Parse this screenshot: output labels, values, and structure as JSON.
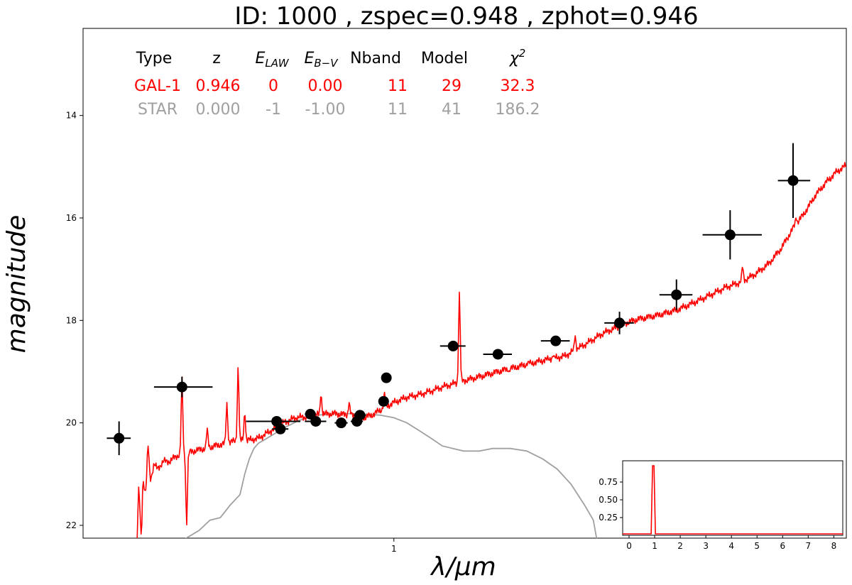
{
  "chart_data": {
    "type": "scatter",
    "title": "ID:  1000   , zspec=0.948 , zphot=0.946",
    "xlabel": "λ/μm",
    "ylabel": "magnitude",
    "x_scale": "log",
    "x_range": [
      0.31,
      5.5
    ],
    "y_range": [
      22.25,
      12.3
    ],
    "y_inverted": true,
    "x_ticks": [
      {
        "value": 1,
        "label": "1"
      }
    ],
    "y_ticks": [
      {
        "value": 14,
        "label": "14"
      },
      {
        "value": 16,
        "label": "16"
      },
      {
        "value": 18,
        "label": "18"
      },
      {
        "value": 20,
        "label": "20"
      },
      {
        "value": 22,
        "label": "22"
      }
    ],
    "fit_table": {
      "headers": [
        "Type",
        "z",
        "E_LAW",
        "E_B-V",
        "Nband",
        "Model",
        "χ2"
      ],
      "rows": [
        {
          "cells": [
            "GAL-1",
            "0.946",
            "0",
            "0.00",
            "11",
            "29",
            "32.3"
          ],
          "color": "#ff0000"
        },
        {
          "cells": [
            "STAR",
            "0.000",
            "-1",
            "-1.00",
            "11",
            "41",
            "186.2"
          ],
          "color": "#a0a0a0"
        }
      ]
    },
    "observed_points": [
      {
        "x": 0.355,
        "y": 20.3,
        "xerr_lo": 0.016,
        "xerr_hi": 0.016,
        "yerr": 0.33
      },
      {
        "x": 0.45,
        "y": 19.3,
        "xerr_lo": 0.045,
        "xerr_hi": 0.055,
        "yerr": 0.2
      },
      {
        "x": 0.643,
        "y": 19.97,
        "xerr_lo": 0.07,
        "xerr_hi": 0.06,
        "yerr": 0.1
      },
      {
        "x": 0.652,
        "y": 20.12,
        "xerr_lo": 0.02,
        "xerr_hi": 0.02,
        "yerr": 0.08
      },
      {
        "x": 0.73,
        "y": 19.83,
        "xerr_lo": 0.015,
        "xerr_hi": 0.015,
        "yerr": 0.05
      },
      {
        "x": 0.745,
        "y": 19.97,
        "xerr_lo": 0.03,
        "xerr_hi": 0.03,
        "yerr": 0.05
      },
      {
        "x": 0.82,
        "y": 20.0,
        "xerr_lo": 0.02,
        "xerr_hi": 0.02,
        "yerr": 0.05
      },
      {
        "x": 0.87,
        "y": 19.97,
        "xerr_lo": 0.02,
        "xerr_hi": 0.02,
        "yerr": 0.05
      },
      {
        "x": 0.88,
        "y": 19.85,
        "xerr_lo": 0.02,
        "xerr_hi": 0.02,
        "yerr": 0.05
      },
      {
        "x": 0.962,
        "y": 19.58,
        "xerr_lo": 0.015,
        "xerr_hi": 0.015,
        "yerr": 0.05
      },
      {
        "x": 0.972,
        "y": 19.12,
        "xerr_lo": 0.01,
        "xerr_hi": 0.01,
        "yerr": 0.05
      },
      {
        "x": 1.25,
        "y": 18.5,
        "xerr_lo": 0.06,
        "xerr_hi": 0.06,
        "yerr": 0.05
      },
      {
        "x": 1.48,
        "y": 18.66,
        "xerr_lo": 0.08,
        "xerr_hi": 0.08,
        "yerr": 0.05
      },
      {
        "x": 1.84,
        "y": 18.4,
        "xerr_lo": 0.1,
        "xerr_hi": 0.1,
        "yerr": 0.05
      },
      {
        "x": 2.34,
        "y": 18.05,
        "xerr_lo": 0.13,
        "xerr_hi": 0.13,
        "yerr": 0.22
      },
      {
        "x": 2.9,
        "y": 17.5,
        "xerr_lo": 0.18,
        "xerr_hi": 0.18,
        "yerr": 0.3
      },
      {
        "x": 3.55,
        "y": 16.33,
        "xerr_lo": 0.35,
        "xerr_hi": 0.45,
        "yerr": 0.48
      },
      {
        "x": 4.5,
        "y": 15.27,
        "xerr_lo": 0.25,
        "xerr_hi": 0.3,
        "yerr": 0.73
      }
    ],
    "galaxy_model": {
      "name": "GAL-1",
      "color": "#ff0000",
      "continuum": [
        [
          0.38,
          22.3
        ],
        [
          0.382,
          21.3
        ],
        [
          0.385,
          21.6
        ],
        [
          0.388,
          21.0
        ],
        [
          0.392,
          21.4
        ],
        [
          0.396,
          20.9
        ],
        [
          0.4,
          21.1
        ],
        [
          0.405,
          20.8
        ],
        [
          0.41,
          20.9
        ],
        [
          0.42,
          20.75
        ],
        [
          0.43,
          20.75
        ],
        [
          0.44,
          20.65
        ],
        [
          0.455,
          20.6
        ],
        [
          0.47,
          20.55
        ],
        [
          0.49,
          20.5
        ],
        [
          0.51,
          20.45
        ],
        [
          0.53,
          20.4
        ],
        [
          0.55,
          20.35
        ],
        [
          0.57,
          20.35
        ],
        [
          0.6,
          20.3
        ],
        [
          0.62,
          20.2
        ],
        [
          0.64,
          20.1
        ],
        [
          0.66,
          20.0
        ],
        [
          0.69,
          19.9
        ],
        [
          0.72,
          19.88
        ],
        [
          0.76,
          19.83
        ],
        [
          0.8,
          19.82
        ],
        [
          0.85,
          19.85
        ],
        [
          0.89,
          19.9
        ],
        [
          0.92,
          19.85
        ],
        [
          0.95,
          19.75
        ],
        [
          1.0,
          19.6
        ],
        [
          1.05,
          19.5
        ],
        [
          1.1,
          19.45
        ],
        [
          1.15,
          19.38
        ],
        [
          1.2,
          19.3
        ],
        [
          1.3,
          19.18
        ],
        [
          1.4,
          19.08
        ],
        [
          1.5,
          18.98
        ],
        [
          1.6,
          18.9
        ],
        [
          1.7,
          18.82
        ],
        [
          1.8,
          18.75
        ],
        [
          1.9,
          18.7
        ],
        [
          2.0,
          18.55
        ],
        [
          2.1,
          18.4
        ],
        [
          2.2,
          18.25
        ],
        [
          2.3,
          18.15
        ],
        [
          2.4,
          18.05
        ],
        [
          2.5,
          17.98
        ],
        [
          2.7,
          17.9
        ],
        [
          2.9,
          17.8
        ],
        [
          3.1,
          17.65
        ],
        [
          3.3,
          17.5
        ],
        [
          3.5,
          17.35
        ],
        [
          3.7,
          17.25
        ],
        [
          3.9,
          17.1
        ],
        [
          4.1,
          16.9
        ],
        [
          4.3,
          16.6
        ],
        [
          4.5,
          16.2
        ],
        [
          4.7,
          15.9
        ],
        [
          4.9,
          15.55
        ],
        [
          5.1,
          15.3
        ],
        [
          5.3,
          15.1
        ],
        [
          5.5,
          14.97
        ]
      ],
      "emission_lines": [
        {
          "x": 0.386,
          "peak": 22.2
        },
        {
          "x": 0.396,
          "peak": 20.45
        },
        {
          "x": 0.45,
          "peak": 19.1
        },
        {
          "x": 0.458,
          "peak": 22.0
        },
        {
          "x": 0.495,
          "peak": 20.1
        },
        {
          "x": 0.533,
          "peak": 19.6
        },
        {
          "x": 0.556,
          "peak": 18.9
        },
        {
          "x": 0.57,
          "peak": 19.8
        },
        {
          "x": 0.76,
          "peak": 19.45
        },
        {
          "x": 0.845,
          "peak": 19.6
        },
        {
          "x": 0.965,
          "peak": 19.4
        },
        {
          "x": 1.28,
          "peak": 17.45
        },
        {
          "x": 1.54,
          "peak": 19.0
        },
        {
          "x": 1.66,
          "peak": 18.8
        },
        {
          "x": 1.82,
          "peak": 18.7
        },
        {
          "x": 1.98,
          "peak": 18.3
        },
        {
          "x": 3.72,
          "peak": 16.95
        },
        {
          "x": 4.55,
          "peak": 16.0
        }
      ]
    },
    "star_model": {
      "name": "STAR",
      "color": "#a0a0a0",
      "points": [
        [
          0.45,
          22.3
        ],
        [
          0.48,
          22.1
        ],
        [
          0.5,
          21.9
        ],
        [
          0.52,
          21.85
        ],
        [
          0.54,
          21.6
        ],
        [
          0.56,
          21.4
        ],
        [
          0.57,
          21.0
        ],
        [
          0.58,
          20.7
        ],
        [
          0.59,
          20.5
        ],
        [
          0.6,
          20.4
        ],
        [
          0.62,
          20.3
        ],
        [
          0.64,
          20.2
        ],
        [
          0.66,
          20.1
        ],
        [
          0.7,
          19.95
        ],
        [
          0.75,
          19.85
        ],
        [
          0.8,
          19.82
        ],
        [
          0.85,
          19.82
        ],
        [
          0.9,
          19.83
        ],
        [
          0.95,
          19.85
        ],
        [
          1.0,
          19.9
        ],
        [
          1.05,
          20.0
        ],
        [
          1.1,
          20.15
        ],
        [
          1.15,
          20.3
        ],
        [
          1.2,
          20.45
        ],
        [
          1.3,
          20.55
        ],
        [
          1.38,
          20.55
        ],
        [
          1.45,
          20.5
        ],
        [
          1.55,
          20.5
        ],
        [
          1.65,
          20.55
        ],
        [
          1.75,
          20.7
        ],
        [
          1.85,
          20.9
        ],
        [
          1.95,
          21.2
        ],
        [
          2.05,
          21.6
        ],
        [
          2.12,
          21.9
        ],
        [
          2.15,
          22.3
        ]
      ]
    },
    "inset": {
      "type": "line",
      "color": "#ff0000",
      "x_range": [
        -0.25,
        8.35
      ],
      "y_range": [
        0.0,
        1.05
      ],
      "x_ticks": [
        "0",
        "1",
        "2",
        "3",
        "4",
        "5",
        "6",
        "7",
        "8"
      ],
      "y_ticks": [
        "0.25",
        "0.50",
        "0.75"
      ],
      "peak_x": 0.946,
      "peak_y": 0.98
    }
  }
}
